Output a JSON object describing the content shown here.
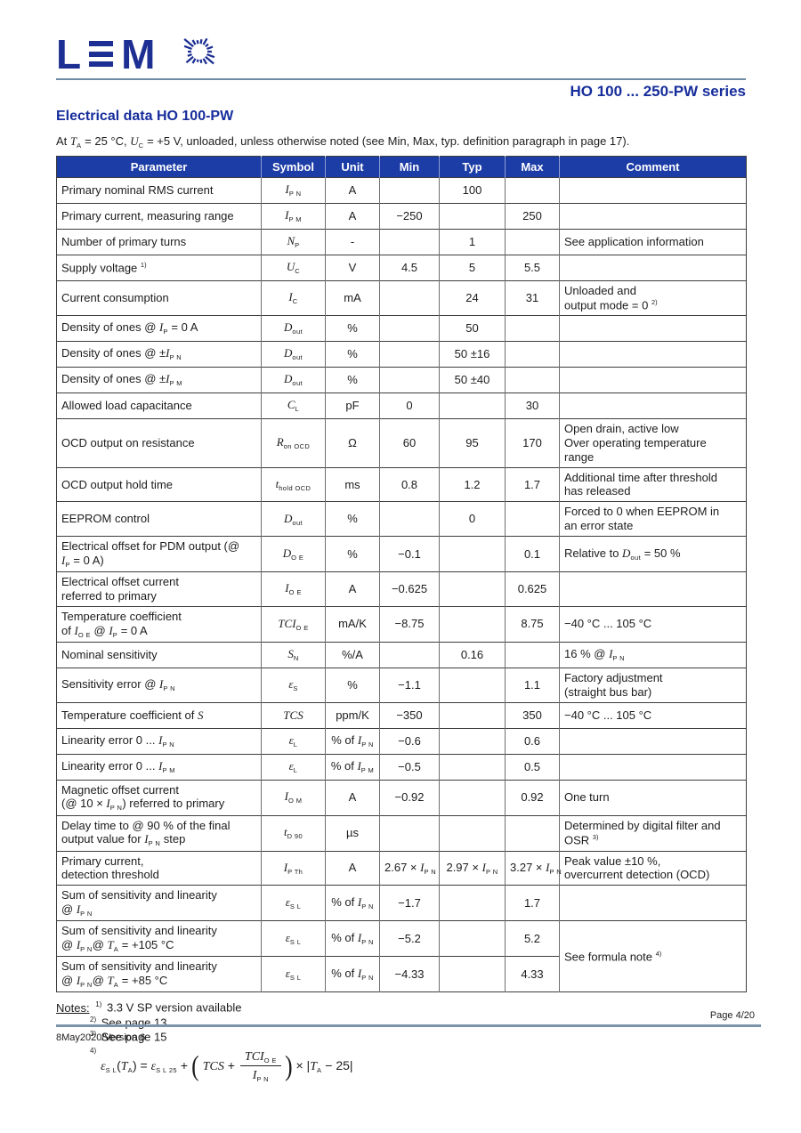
{
  "colors": {
    "brand_navy": "#1e2f93",
    "title_blue": "#162d9b",
    "table_header_bg": "#1c3ca6",
    "rule_blue_gray": "#7b94aa"
  },
  "header": {
    "logo_letter_l": "L",
    "logo_letter_m": "M",
    "series_title": "HO 100 ... 250-PW series"
  },
  "title": "Electrical data HO 100-PW",
  "intro": "At *T*_{A} = 25 °C, *U*_{C} = +5 V, unloaded,  unless otherwise noted (see Min, Max, typ. definition paragraph in page 17).",
  "table": {
    "headers": [
      "Parameter",
      "Symbol",
      "Unit",
      "Min",
      "Typ",
      "Max",
      "Comment"
    ],
    "rows": [
      {
        "param": "Primary nominal RMS current",
        "symbol": "*I*_{P N}",
        "unit": "A",
        "min": "",
        "typ": "100",
        "max": "",
        "comment": ""
      },
      {
        "param": "Primary current, measuring range",
        "symbol": "*I*_{P M}",
        "unit": "A",
        "min": "−250",
        "typ": "",
        "max": "250",
        "comment": ""
      },
      {
        "param": "Number of primary turns",
        "symbol": "*N*_{P}",
        "unit": "-",
        "min": "",
        "typ": "1",
        "max": "",
        "comment": "See application information"
      },
      {
        "param": "Supply voltage ^{1)}",
        "symbol": "*U*_{C}",
        "unit": "V",
        "min": "4.5",
        "typ": "5",
        "max": "5.5",
        "comment": ""
      },
      {
        "param": "Current consumption",
        "symbol": "*I*_{C}",
        "unit": "mA",
        "min": "",
        "typ": "24",
        "max": "31",
        "comment": "Unloaded and\noutput mode = 0 ^{2)}"
      },
      {
        "param": "Density of ones @ *I*_{P} = 0 A",
        "symbol": "*D*_{out}",
        "unit": "%",
        "min": "",
        "typ": "50",
        "max": "",
        "comment": ""
      },
      {
        "param": "Density of ones @ ±*I*_{P N}",
        "symbol": "*D*_{out}",
        "unit": "%",
        "min": "",
        "typ": "50 ±16",
        "max": "",
        "comment": ""
      },
      {
        "param": "Density of ones @ ±*I*_{P M}",
        "symbol": "*D*_{out}",
        "unit": "%",
        "min": "",
        "typ": "50 ±40",
        "max": "",
        "comment": ""
      },
      {
        "param": "Allowed load capacitance",
        "symbol": "*C*_{L}",
        "unit": "pF",
        "min": "0",
        "typ": "",
        "max": "30",
        "comment": ""
      },
      {
        "param": "OCD output on resistance",
        "symbol": "*R*_{on OCD}",
        "unit": "Ω",
        "min": "60",
        "typ": "95",
        "max": "170",
        "comment": "Open drain, active low\nOver operating temperature\nrange"
      },
      {
        "param": "OCD output hold time",
        "symbol": "*t*_{hold OCD}",
        "unit": "ms",
        "min": "0.8",
        "typ": "1.2",
        "max": "1.7",
        "comment": "Additional time after threshold\nhas released"
      },
      {
        "param": "EEPROM control",
        "symbol": "*D*_{out}",
        "unit": "%",
        "min": "",
        "typ": "0",
        "max": "",
        "comment": "Forced to 0 when EEPROM in\nan error state"
      },
      {
        "param": "Electrical offset for PDM output (@\n*I*_{P} = 0 A)",
        "symbol": "*D*_{O E}",
        "unit": "%",
        "min": "−0.1",
        "typ": "",
        "max": "0.1",
        "comment": "Relative to *D*_{out} = 50 %"
      },
      {
        "param": "Electrical offset current\nreferred to primary",
        "symbol": "*I*_{O E}",
        "unit": "A",
        "min": "−0.625",
        "typ": "",
        "max": "0.625",
        "comment": ""
      },
      {
        "param": "Temperature coefficient\nof *I*_{O E} @ *I*_{P} = 0 A",
        "symbol": "*TCI*_{O E}",
        "unit": "mA/K",
        "min": "−8.75",
        "typ": "",
        "max": "8.75",
        "comment": "−40 °C ... 105 °C"
      },
      {
        "param": "Nominal sensitivity",
        "symbol": "*S*_{N}",
        "unit": "%/A",
        "min": "",
        "typ": "0.16",
        "max": "",
        "comment": "16 % @ *I*_{P N}"
      },
      {
        "param": "Sensitivity error @ *I*_{P N}",
        "symbol": "*ε*_{S}",
        "unit": "%",
        "min": "−1.1",
        "typ": "",
        "max": "1.1",
        "comment": "Factory adjustment\n(straight bus bar)"
      },
      {
        "param": "Temperature coefficient of *S*",
        "symbol": "*TCS*",
        "unit": "ppm/K",
        "min": "−350",
        "typ": "",
        "max": "350",
        "comment": "−40 °C ... 105 °C"
      },
      {
        "param": "Linearity error 0 ... *I*_{P N}",
        "symbol": "*ε*_{L}",
        "unit": "% of *I*_{P N}",
        "min": "−0.6",
        "typ": "",
        "max": "0.6",
        "comment": ""
      },
      {
        "param": "Linearity error 0 ... *I*_{P M}",
        "symbol": "*ε*_{L}",
        "unit": "% of *I*_{P M}",
        "min": "−0.5",
        "typ": "",
        "max": "0.5",
        "comment": ""
      },
      {
        "param": "Magnetic offset current\n(@ 10 × *I*_{P N}) referred to primary",
        "symbol": "*I*_{O M}",
        "unit": "A",
        "min": "−0.92",
        "typ": "",
        "max": "0.92",
        "comment": "One turn"
      },
      {
        "param": "Delay time to @ 90 % of the final\noutput value for *I*_{P N} step",
        "symbol": "*t*_{D 90}",
        "unit": "µs",
        "min": "",
        "typ": "",
        "max": "",
        "comment": "Determined by digital filter and\nOSR ^{3)}"
      },
      {
        "param": "Primary current,\ndetection threshold",
        "symbol": "*I*_{P Th}",
        "unit": "A",
        "min": "2.67 × *I*_{P N}",
        "typ": "2.97 × *I*_{P N}",
        "max": "3.27 × *I*_{P N}",
        "comment": "Peak value ±10 %,\novercurrent detection (OCD)"
      },
      {
        "param": "Sum of sensitivity and linearity\n@ *I*_{P N}",
        "symbol": "*ε*_{S L}",
        "unit": "% of *I*_{P N}",
        "min": "−1.7",
        "typ": "",
        "max": "1.7",
        "comment": ""
      },
      {
        "param": "Sum of sensitivity and linearity\n@ *I*_{P N}@ *T*_{A} = +105 °C",
        "symbol": "*ε*_{S L}",
        "unit": "% of *I*_{P N}",
        "min": "−5.2",
        "typ": "",
        "max": "5.2",
        "comment": "See formula note ^{4)}",
        "comment_rowspan": 2
      },
      {
        "param": "Sum of sensitivity and linearity\n@ *I*_{P N}@ *T*_{A} = +85 °C",
        "symbol": "*ε*_{S L}",
        "unit": "% of *I*_{P N}",
        "min": "−4.33",
        "typ": "",
        "max": "4.33",
        "comment_skip": true
      }
    ]
  },
  "notes": {
    "label": "Notes:",
    "items": [
      {
        "sup": "1)",
        "text": "3.3 V SP version available"
      },
      {
        "sup": "2)",
        "text": "See page 13"
      },
      {
        "sup": "3)",
        "text": "See page 15"
      }
    ],
    "formula": {
      "sup": "4)",
      "lhs": "*ε*_{S L}(*T*_{A}) = *ε*_{S L 25} +",
      "open_paren": "(",
      "inner_left": "*TCS* +",
      "num": "*TCI*_{O E}",
      "den": "*I*_{P N}",
      "close_paren": ")",
      "rhs": "× |*T*_{A} − 25|"
    }
  },
  "footer": {
    "page": "Page 4/20",
    "version": "8May2020/Version 6"
  }
}
